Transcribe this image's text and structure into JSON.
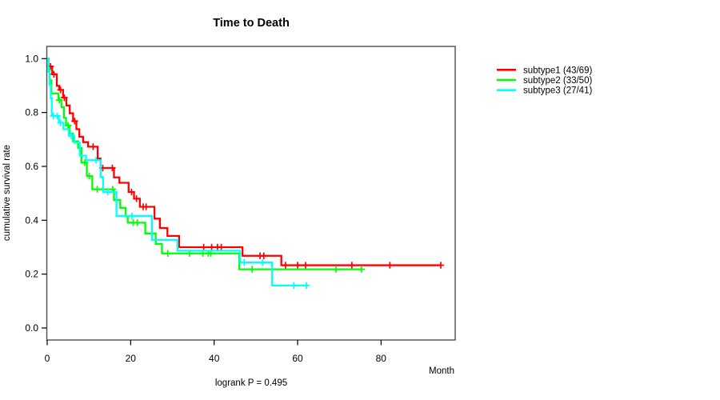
{
  "chart_data": {
    "type": "line",
    "subtype": "kaplan-meier-step-curves",
    "title": "Time to Death",
    "xlabel": "Month",
    "ylabel": "cumulative survival rate",
    "footnote": "logrank P = 0.495",
    "xlim": [
      0,
      97.8
    ],
    "ylim": [
      0,
      1
    ],
    "grid": false,
    "legend_position": "right-outside",
    "x_ticks": [
      0,
      20,
      40,
      60,
      80
    ],
    "y_ticks": [
      1.0,
      0.8,
      0.6,
      0.4,
      0.2,
      0.0
    ],
    "x_tick_labels": [
      "0",
      "20",
      "40",
      "60",
      "80"
    ],
    "y_tick_labels": [
      "1.0",
      "0.8",
      "0.6",
      "0.4",
      "0.2",
      "0.0"
    ],
    "series": [
      {
        "name": "subtype1",
        "label": "subtype1 (43/69)",
        "events": 43,
        "n": 69,
        "color": "#ff0000",
        "steps": [
          [
            0,
            1.0
          ],
          [
            0.3,
            0.971
          ],
          [
            1.2,
            0.942
          ],
          [
            2.3,
            0.899
          ],
          [
            2.9,
            0.884
          ],
          [
            3.8,
            0.855
          ],
          [
            4.6,
            0.826
          ],
          [
            5.4,
            0.797
          ],
          [
            6.2,
            0.768
          ],
          [
            7.0,
            0.738
          ],
          [
            7.7,
            0.71
          ],
          [
            8.6,
            0.69
          ],
          [
            9.8,
            0.673
          ],
          [
            12.1,
            0.629
          ],
          [
            12.8,
            0.594
          ],
          [
            16.0,
            0.559
          ],
          [
            17.3,
            0.539
          ],
          [
            19.5,
            0.505
          ],
          [
            20.8,
            0.48
          ],
          [
            22.2,
            0.45
          ],
          [
            25.7,
            0.406
          ],
          [
            27.0,
            0.371
          ],
          [
            28.8,
            0.342
          ],
          [
            31.6,
            0.3
          ],
          [
            46.8,
            0.268
          ],
          [
            56.1,
            0.233
          ]
        ],
        "end_time": 94.3,
        "censors": [
          [
            0.8,
            0.971
          ],
          [
            1.6,
            0.942
          ],
          [
            3.2,
            0.884
          ],
          [
            4.1,
            0.855
          ],
          [
            6.6,
            0.768
          ],
          [
            11.0,
            0.673
          ],
          [
            13.3,
            0.594
          ],
          [
            15.6,
            0.594
          ],
          [
            20.2,
            0.505
          ],
          [
            21.4,
            0.48
          ],
          [
            23.0,
            0.45
          ],
          [
            23.7,
            0.45
          ],
          [
            37.5,
            0.3
          ],
          [
            39.4,
            0.3
          ],
          [
            40.8,
            0.3
          ],
          [
            41.7,
            0.3
          ],
          [
            51.0,
            0.268
          ],
          [
            51.9,
            0.268
          ],
          [
            57.1,
            0.233
          ],
          [
            60.0,
            0.233
          ],
          [
            61.9,
            0.233
          ],
          [
            73.0,
            0.233
          ],
          [
            82.1,
            0.233
          ],
          [
            94.3,
            0.233
          ]
        ]
      },
      {
        "name": "subtype2",
        "label": "subtype2 (33/50)",
        "events": 33,
        "n": 50,
        "color": "#00ff00",
        "steps": [
          [
            0,
            1.0
          ],
          [
            0.3,
            0.96
          ],
          [
            0.6,
            0.92
          ],
          [
            1.0,
            0.871
          ],
          [
            2.7,
            0.846
          ],
          [
            3.4,
            0.82
          ],
          [
            4.0,
            0.78
          ],
          [
            4.5,
            0.752
          ],
          [
            5.4,
            0.722
          ],
          [
            6.2,
            0.693
          ],
          [
            7.4,
            0.668
          ],
          [
            8.2,
            0.614
          ],
          [
            9.5,
            0.564
          ],
          [
            10.8,
            0.515
          ],
          [
            16.0,
            0.475
          ],
          [
            17.5,
            0.446
          ],
          [
            18.8,
            0.415
          ],
          [
            19.3,
            0.391
          ],
          [
            23.5,
            0.351
          ],
          [
            26.0,
            0.312
          ],
          [
            27.5,
            0.277
          ],
          [
            46.0,
            0.218
          ]
        ],
        "end_time": 75.3,
        "censors": [
          [
            2.9,
            0.846
          ],
          [
            5.0,
            0.752
          ],
          [
            9.0,
            0.614
          ],
          [
            10.1,
            0.564
          ],
          [
            12.0,
            0.515
          ],
          [
            15.7,
            0.515
          ],
          [
            20.6,
            0.391
          ],
          [
            21.6,
            0.391
          ],
          [
            28.9,
            0.277
          ],
          [
            34.1,
            0.277
          ],
          [
            37.3,
            0.277
          ],
          [
            38.6,
            0.277
          ],
          [
            39.2,
            0.277
          ],
          [
            49.1,
            0.218
          ],
          [
            69.2,
            0.218
          ],
          [
            75.3,
            0.218
          ]
        ]
      },
      {
        "name": "subtype3",
        "label": "subtype3 (27/41)",
        "events": 27,
        "n": 41,
        "color": "#00ffff",
        "steps": [
          [
            0,
            1.0
          ],
          [
            0.25,
            0.951
          ],
          [
            0.55,
            0.902
          ],
          [
            0.85,
            0.854
          ],
          [
            1.1,
            0.787
          ],
          [
            2.8,
            0.762
          ],
          [
            3.9,
            0.738
          ],
          [
            5.2,
            0.713
          ],
          [
            6.5,
            0.688
          ],
          [
            7.8,
            0.64
          ],
          [
            9.3,
            0.623
          ],
          [
            12.8,
            0.56
          ],
          [
            13.4,
            0.505
          ],
          [
            16.6,
            0.416
          ],
          [
            25.1,
            0.327
          ],
          [
            31.2,
            0.287
          ],
          [
            46.2,
            0.243
          ],
          [
            53.9,
            0.158
          ]
        ],
        "end_time": 62.1,
        "censors": [
          [
            1.5,
            0.787
          ],
          [
            2.4,
            0.787
          ],
          [
            3.2,
            0.762
          ],
          [
            5.8,
            0.713
          ],
          [
            11.7,
            0.623
          ],
          [
            14.5,
            0.505
          ],
          [
            20.3,
            0.416
          ],
          [
            47.2,
            0.243
          ],
          [
            51.6,
            0.243
          ],
          [
            59.1,
            0.158
          ],
          [
            62.1,
            0.158
          ]
        ]
      }
    ]
  }
}
